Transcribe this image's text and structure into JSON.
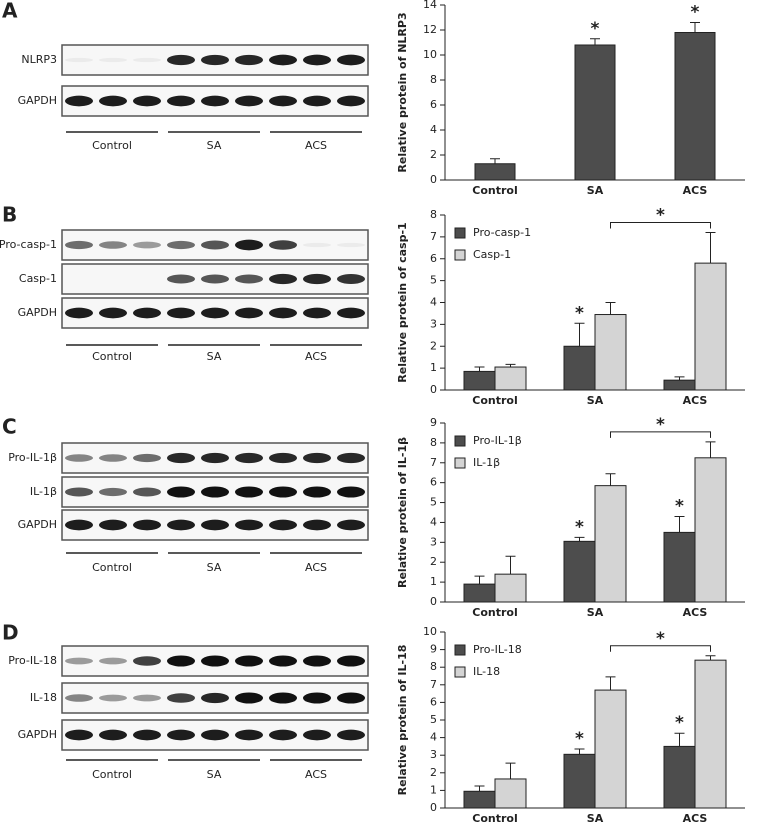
{
  "blots": [
    {
      "label": "A",
      "rows": [
        "NLRP3",
        "GAPDH"
      ],
      "groups": [
        "Control",
        "SA",
        "ACS"
      ]
    },
    {
      "label": "B",
      "rows": [
        "Pro-casp-1",
        "Casp-1",
        "GAPDH"
      ],
      "groups": [
        "Control",
        "SA",
        "ACS"
      ]
    },
    {
      "label": "C",
      "rows": [
        "Pro-IL-1β",
        "IL-1β",
        "GAPDH"
      ],
      "groups": [
        "Control",
        "SA",
        "ACS"
      ]
    },
    {
      "label": "D",
      "rows": [
        "Pro-IL-18",
        "IL-18",
        "GAPDH"
      ],
      "groups": [
        "Control",
        "SA",
        "ACS"
      ]
    }
  ],
  "chart_data": [
    {
      "type": "bar",
      "ylabel": "Relative protein of NLRP3",
      "categories": [
        "Control",
        "SA",
        "ACS"
      ],
      "ylim": [
        0,
        14
      ],
      "yticks": [
        0,
        2,
        4,
        6,
        8,
        10,
        12,
        14
      ],
      "series": [
        {
          "color": "#4d4d4d",
          "values": [
            1.3,
            10.8,
            11.8
          ],
          "errors": [
            0.4,
            0.5,
            0.8
          ]
        }
      ],
      "annotations": [
        {
          "text": "*",
          "series": 0,
          "index": 1
        },
        {
          "text": "*",
          "series": 0,
          "index": 2
        }
      ]
    },
    {
      "type": "bar",
      "ylabel": "Relative protein of casp-1",
      "categories": [
        "Control",
        "SA",
        "ACS"
      ],
      "ylim": [
        0,
        8
      ],
      "yticks": [
        0,
        1,
        2,
        3,
        4,
        5,
        6,
        7,
        8
      ],
      "legend": "upper left",
      "series": [
        {
          "name": "Pro-casp-1",
          "color": "#4d4d4d",
          "values": [
            0.85,
            2.0,
            0.45
          ],
          "errors": [
            0.2,
            1.05,
            0.15
          ]
        },
        {
          "name": "Casp-1",
          "color": "#d4d4d4",
          "values": [
            1.05,
            3.45,
            5.8
          ],
          "errors": [
            0.12,
            0.55,
            1.4
          ]
        }
      ],
      "annotations": [
        {
          "text": "*",
          "series": 0,
          "index": 1
        }
      ],
      "bracket": {
        "text": "*",
        "series": 1,
        "from": 1,
        "to": 2
      }
    },
    {
      "type": "bar",
      "ylabel": "Relative protein of IL-1β",
      "categories": [
        "Control",
        "SA",
        "ACS"
      ],
      "ylim": [
        0,
        9
      ],
      "yticks": [
        0,
        1,
        2,
        3,
        4,
        5,
        6,
        7,
        8,
        9
      ],
      "legend": "upper left",
      "series": [
        {
          "name": "Pro-IL-1β",
          "color": "#4d4d4d",
          "values": [
            0.9,
            3.05,
            3.5
          ],
          "errors": [
            0.4,
            0.2,
            0.8
          ]
        },
        {
          "name": "IL-1β",
          "color": "#d4d4d4",
          "values": [
            1.4,
            5.85,
            7.25
          ],
          "errors": [
            0.9,
            0.6,
            0.8
          ]
        }
      ],
      "annotations": [
        {
          "text": "*",
          "series": 0,
          "index": 1
        },
        {
          "text": "*",
          "series": 0,
          "index": 2
        }
      ],
      "bracket": {
        "text": "*",
        "series": 1,
        "from": 1,
        "to": 2
      }
    },
    {
      "type": "bar",
      "ylabel": "Relative protein of IL-18",
      "categories": [
        "Control",
        "SA",
        "ACS"
      ],
      "ylim": [
        0,
        10
      ],
      "yticks": [
        0,
        1,
        2,
        3,
        4,
        5,
        6,
        7,
        8,
        9,
        10
      ],
      "legend": "upper left",
      "series": [
        {
          "name": "Pro-IL-18",
          "color": "#4d4d4d",
          "values": [
            0.95,
            3.05,
            3.5
          ],
          "errors": [
            0.3,
            0.3,
            0.75
          ]
        },
        {
          "name": "IL-18",
          "color": "#d4d4d4",
          "values": [
            1.65,
            6.7,
            8.4
          ],
          "errors": [
            0.9,
            0.75,
            0.25
          ]
        }
      ],
      "annotations": [
        {
          "text": "*",
          "series": 0,
          "index": 1
        },
        {
          "text": "*",
          "series": 0,
          "index": 2
        }
      ],
      "bracket": {
        "text": "*",
        "series": 1,
        "from": 1,
        "to": 2
      }
    }
  ]
}
